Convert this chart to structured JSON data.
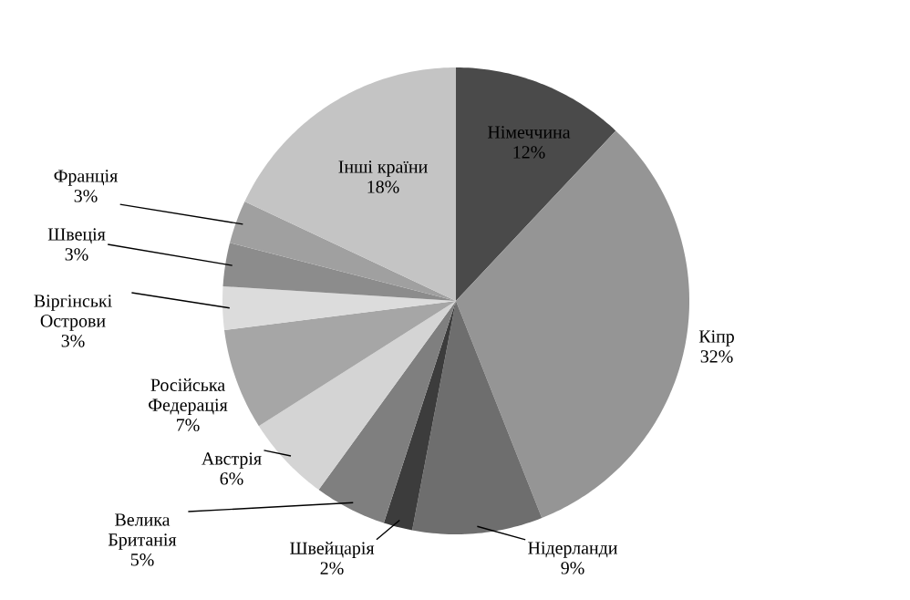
{
  "chart_data": {
    "type": "pie",
    "categories": [
      "Німеччина",
      "Кіпр",
      "Нідерланди",
      "Швейцарія",
      "Велика Британія",
      "Австрія",
      "Російська Федерація",
      "Віргінські Острови",
      "Швеція",
      "Франція",
      "Інші країни"
    ],
    "values": [
      12,
      32,
      9,
      2,
      5,
      6,
      7,
      3,
      3,
      3,
      18
    ],
    "value_labels": [
      "12%",
      "32%",
      "9%",
      "2%",
      "5%",
      "6%",
      "7%",
      "3%",
      "3%",
      "3%",
      "18%"
    ],
    "colors": [
      "#4a4a4a",
      "#959595",
      "#6e6e6e",
      "#3c3c3c",
      "#7f7f7f",
      "#d4d4d4",
      "#a6a6a6",
      "#dcdcdc",
      "#8c8c8c",
      "#a0a0a0",
      "#c4c4c4"
    ]
  }
}
